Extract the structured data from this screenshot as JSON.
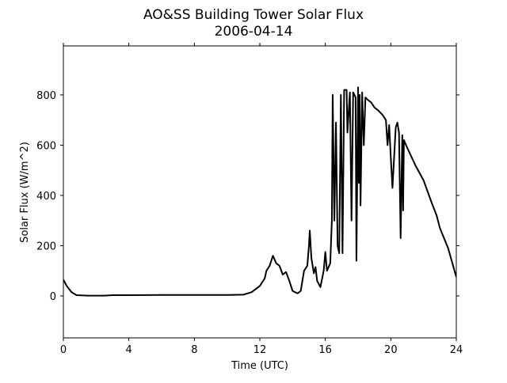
{
  "chart_data": {
    "type": "line",
    "title": "AO&SS Building Tower Solar Flux",
    "subtitle": "2006-04-14",
    "x_label": "Time (UTC)",
    "y_label": "Solar Flux (W/m^2)",
    "xlim": [
      0,
      24
    ],
    "xticks": [
      0,
      4,
      8,
      12,
      16,
      20,
      24
    ],
    "ylim": [
      -167,
      995
    ],
    "yticks": [
      0,
      200,
      400,
      600,
      800
    ],
    "grid": false,
    "series": [
      {
        "name": "Solar Flux",
        "color": "#000000",
        "x": [
          0,
          0.2,
          0.5,
          0.8,
          1.5,
          2.5,
          3,
          4,
          6,
          8,
          10,
          11,
          11.5,
          12,
          12.3,
          12.4,
          12.6,
          12.8,
          13,
          13.2,
          13.4,
          13.6,
          13.8,
          14,
          14.3,
          14.5,
          14.7,
          14.9,
          15,
          15.05,
          15.15,
          15.3,
          15.4,
          15.5,
          15.7,
          15.9,
          16,
          16.1,
          16.3,
          16.4,
          16.45,
          16.55,
          16.65,
          16.75,
          16.85,
          16.95,
          17.05,
          17.15,
          17.3,
          17.35,
          17.5,
          17.6,
          17.7,
          17.85,
          17.9,
          18,
          18.05,
          18.1,
          18.15,
          18.25,
          18.35,
          18.45,
          18.6,
          18.8,
          19,
          19.2,
          19.5,
          19.7,
          19.8,
          19.9,
          20,
          20.1,
          20.2,
          20.3,
          20.4,
          20.5,
          20.6,
          20.7,
          20.75,
          20.8,
          21,
          21.5,
          22,
          22.5,
          22.8,
          23,
          23.5,
          24
        ],
        "values": [
          65,
          40,
          15,
          3,
          1,
          1,
          3,
          3,
          4,
          4,
          4,
          5,
          15,
          40,
          70,
          100,
          120,
          160,
          130,
          120,
          85,
          95,
          60,
          20,
          10,
          20,
          100,
          120,
          200,
          260,
          150,
          90,
          115,
          60,
          35,
          100,
          175,
          100,
          130,
          300,
          800,
          300,
          690,
          200,
          170,
          800,
          170,
          820,
          820,
          650,
          810,
          300,
          810,
          790,
          140,
          830,
          450,
          800,
          360,
          810,
          600,
          790,
          780,
          770,
          750,
          740,
          720,
          700,
          600,
          680,
          550,
          430,
          550,
          670,
          690,
          650,
          230,
          640,
          340,
          620,
          590,
          520,
          460,
          370,
          320,
          270,
          190,
          75
        ]
      }
    ]
  }
}
